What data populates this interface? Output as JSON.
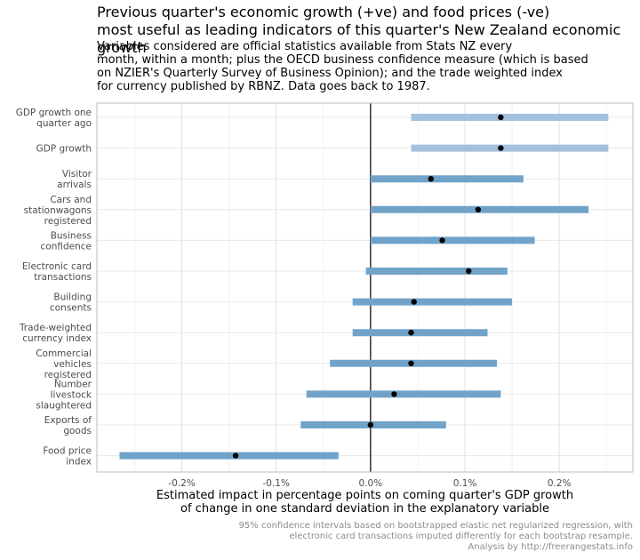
{
  "chart_data": {
    "type": "interval",
    "title": "Previous quarter's economic growth (+ve) and food prices (-ve)\nmost useful as leading indicators of this quarter's New Zealand economic growth",
    "subtitle": "Variables considered are official statistics available from Stats NZ every\nmonth, within a month; plus the OECD business confidence measure (which is based\non NZIER's Quarterly Survey of Business Opinion); and the trade weighted index\nfor currency published by RBNZ. Data goes back to 1987.",
    "xlabel": "Estimated impact in percentage points on coming quarter's GDP growth\nof change in one standard deviation in the explanatory variable",
    "caption": "95% confidence intervals based on bootstrapped elastic net regularized regression, with\nelectronic card transactions imputed differently for each bootstrap resample.\nAnalysis by http://freerangestats.info",
    "xlim": [
      -0.29,
      0.278
    ],
    "xticks": [
      {
        "value": -0.2,
        "label": "-0.2%"
      },
      {
        "value": -0.1,
        "label": "-0.1%"
      },
      {
        "value": 0.0,
        "label": "0.0%"
      },
      {
        "value": 0.1,
        "label": "0.1%"
      },
      {
        "value": 0.2,
        "label": "0.2%"
      }
    ],
    "grid": true,
    "items": [
      {
        "label": "GDP growth one\nquarter ago",
        "estimate": 0.138,
        "low": 0.043,
        "high": 0.252,
        "color": "#a3c1de"
      },
      {
        "label": "GDP growth",
        "estimate": 0.138,
        "low": 0.043,
        "high": 0.252,
        "color": "#a3c1de"
      },
      {
        "label": "Visitor\narrivals",
        "estimate": 0.064,
        "low": 0.0,
        "high": 0.162,
        "color": "#71a3c9"
      },
      {
        "label": "Cars and\nstationwagons\nregistered",
        "estimate": 0.114,
        "low": 0.0,
        "high": 0.231,
        "color": "#71a3c9"
      },
      {
        "label": "Business\nconfidence",
        "estimate": 0.076,
        "low": 0.0,
        "high": 0.174,
        "color": "#71a3c9"
      },
      {
        "label": "Electronic card\ntransactions",
        "estimate": 0.104,
        "low": -0.005,
        "high": 0.145,
        "color": "#71a3c9"
      },
      {
        "label": "Building\nconsents",
        "estimate": 0.046,
        "low": -0.019,
        "high": 0.15,
        "color": "#71a3c9"
      },
      {
        "label": "Trade-weighted\ncurrency index",
        "estimate": 0.043,
        "low": -0.019,
        "high": 0.124,
        "color": "#71a3c9"
      },
      {
        "label": "Commercial\nvehicles\nregistered",
        "estimate": 0.043,
        "low": -0.043,
        "high": 0.134,
        "color": "#71a3c9"
      },
      {
        "label": "Number\nlivestock\nslaughtered",
        "estimate": 0.025,
        "low": -0.068,
        "high": 0.138,
        "color": "#71a3c9"
      },
      {
        "label": "Exports of\ngoods",
        "estimate": 0.0,
        "low": -0.074,
        "high": 0.08,
        "color": "#71a3c9"
      },
      {
        "label": "Food price\nindex",
        "estimate": -0.143,
        "low": -0.266,
        "high": -0.034,
        "color": "#71a3c9"
      }
    ]
  }
}
